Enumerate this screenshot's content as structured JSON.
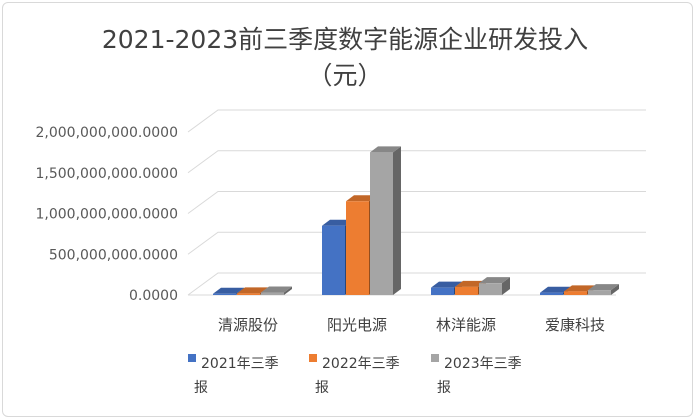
{
  "chart_data": {
    "type": "bar",
    "style": "3d-clustered-column",
    "title_line1": "2021-2023前三季度数字能源企业研发投入",
    "title_line2": "（元）",
    "categories": [
      "清源股份",
      "阳光电源",
      "林洋能源",
      "爱康科技"
    ],
    "series": [
      {
        "name": "2021年三季报",
        "color": "#4472c4",
        "values": [
          15000000,
          850000000,
          90000000,
          28000000
        ]
      },
      {
        "name": "2022年三季报",
        "color": "#ed7d31",
        "values": [
          20000000,
          1150000000,
          100000000,
          45000000
        ]
      },
      {
        "name": "2023年三季报",
        "color": "#a5a5a5",
        "values": [
          30000000,
          1750000000,
          145000000,
          60000000
        ]
      }
    ],
    "y_ticks": [
      "0.0000",
      "500,000,000.0000",
      "1,000,000,000.0000",
      "1,500,000,000.0000",
      "2,000,000,000.0000"
    ],
    "ylim": [
      0,
      2000000000
    ],
    "grid": true,
    "legend_position": "bottom"
  }
}
